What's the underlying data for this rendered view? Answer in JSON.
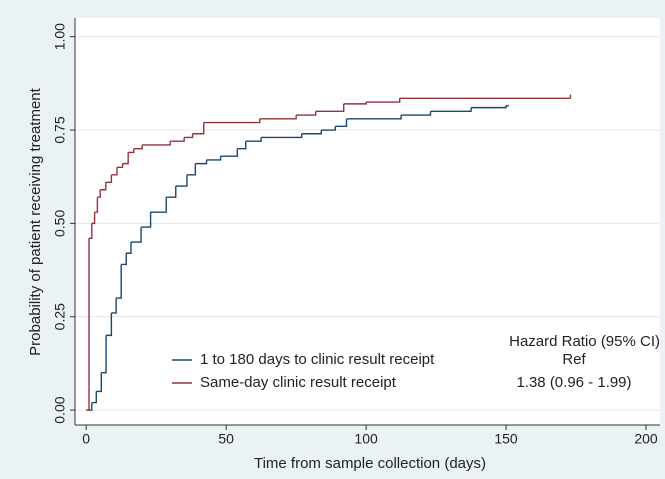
{
  "chart_data": {
    "type": "step",
    "x_label": "Time from sample collection (days)",
    "y_label": "Probability of patient receiving treatment",
    "xlim": [
      -4,
      205
    ],
    "ylim": [
      -0.04,
      1.05
    ],
    "xticks": [
      0,
      50,
      100,
      150,
      200
    ],
    "yticks": [
      {
        "value": 0,
        "label": "0.00"
      },
      {
        "value": 0.25,
        "label": "0.25"
      },
      {
        "value": 0.5,
        "label": "0.50"
      },
      {
        "value": 0.75,
        "label": "0.75"
      },
      {
        "value": 1,
        "label": "1.00"
      }
    ],
    "grid": true,
    "legend_header": "Hazard Ratio (95% CI)",
    "series": [
      {
        "name": "1 to 180 days to clinic result receipt",
        "hazard_ratio": "Ref",
        "color": "#1a476f",
        "x": [
          0.5,
          2,
          3.6,
          5.4,
          7.1,
          9,
          10.7,
          12.5,
          14.3,
          16,
          19.6,
          23,
          28.6,
          32,
          36,
          39,
          43,
          48,
          54,
          57,
          62.5,
          77,
          84,
          89,
          93,
          112.5,
          123,
          137.5,
          150,
          151
        ],
        "values": [
          0,
          0.02,
          0.05,
          0.1,
          0.2,
          0.26,
          0.3,
          0.39,
          0.42,
          0.45,
          0.49,
          0.53,
          0.57,
          0.6,
          0.63,
          0.66,
          0.67,
          0.68,
          0.7,
          0.72,
          0.73,
          0.74,
          0.75,
          0.76,
          0.78,
          0.79,
          0.8,
          0.81,
          0.815,
          0.815
        ]
      },
      {
        "name": "Same-day clinic result receipt",
        "hazard_ratio": "1.38 (0.96 - 1.99)",
        "color": "#90353b",
        "x": [
          0,
          1,
          2,
          3,
          4,
          5,
          7,
          9,
          11,
          13,
          15,
          17,
          20,
          30,
          35,
          38,
          42,
          62,
          75,
          82,
          92,
          100,
          112,
          173,
          173
        ],
        "values": [
          0,
          0.46,
          0.5,
          0.53,
          0.57,
          0.59,
          0.61,
          0.63,
          0.65,
          0.66,
          0.69,
          0.7,
          0.71,
          0.72,
          0.73,
          0.74,
          0.77,
          0.78,
          0.79,
          0.8,
          0.82,
          0.825,
          0.835,
          0.835,
          0.845
        ]
      }
    ]
  }
}
